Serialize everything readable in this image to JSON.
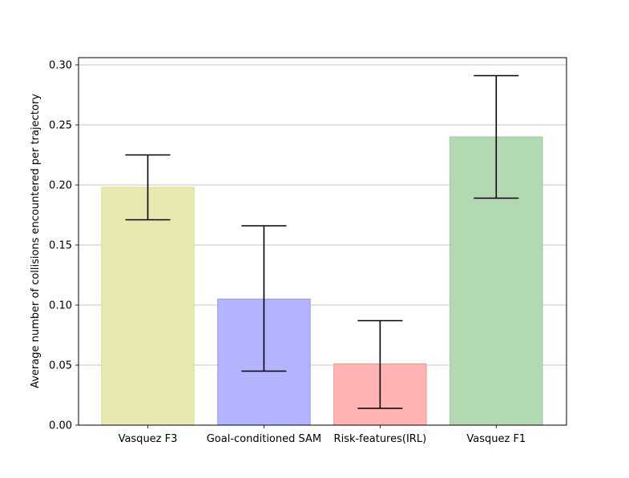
{
  "chart_data": {
    "type": "bar",
    "categories": [
      "Vasquez F3",
      "Goal-conditioned SAM",
      "Risk-features(IRL)",
      "Vasquez F1"
    ],
    "values": [
      0.198,
      0.105,
      0.051,
      0.24
    ],
    "error_low": [
      0.171,
      0.045,
      0.014,
      0.189
    ],
    "error_high": [
      0.225,
      0.166,
      0.087,
      0.291
    ],
    "colors": [
      "#e8e8b0",
      "#b3b3ff",
      "#ffb3b3",
      "#b3d9b3"
    ],
    "edge_colors": [
      "#dede8c",
      "#9999ee",
      "#ee9999",
      "#99cc99"
    ],
    "ylabel": "Average number of collisions encountered per trajectory",
    "xlabel": "",
    "ylim": [
      0,
      0.306
    ],
    "yticks": [
      "0.00",
      "0.05",
      "0.10",
      "0.15",
      "0.20",
      "0.25",
      "0.30"
    ],
    "ytick_values": [
      0,
      0.05,
      0.1,
      0.15,
      0.2,
      0.25,
      0.3
    ],
    "grid": "horizontal"
  }
}
